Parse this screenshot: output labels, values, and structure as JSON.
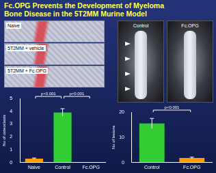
{
  "slide": {
    "title": [
      "Fc.OPG Prevents the Development of Myeloma",
      "Bone Disease in the 5T2MM Murine Model"
    ],
    "histology_labels": [
      "Naive",
      "5T2MM + vehicle",
      "5T2MM + Fc.OPG"
    ],
    "xray_labels": [
      "Control",
      "Fc.OPG"
    ]
  },
  "chart_data": [
    {
      "type": "bar",
      "y_label": "No of osteoclasts",
      "categories": [
        "Naive",
        "Control",
        "Fc.OPG"
      ],
      "values": [
        0.3,
        3.9,
        0
      ],
      "errors": [
        0.05,
        0.3,
        0
      ],
      "colors": [
        "#ff9900",
        "#33cc33",
        "#ff9900"
      ],
      "ylim": [
        0,
        5
      ],
      "yticks": [
        0,
        1,
        2,
        3,
        4,
        5
      ],
      "grid": false,
      "annotations": [
        {
          "text": "p<0.001",
          "from": "Naive",
          "to": "Control"
        },
        {
          "text": "p<0.001",
          "from": "Control",
          "to": "Fc.OPG"
        }
      ]
    },
    {
      "type": "bar",
      "y_label": "No of lesions",
      "categories": [
        "Control",
        "Fc.OPG"
      ],
      "values": [
        15.5,
        1.8
      ],
      "errors": [
        2,
        0.3
      ],
      "colors": [
        "#33cc33",
        "#ff9900"
      ],
      "ylim": [
        0,
        20
      ],
      "yticks": [
        0,
        10,
        20
      ],
      "grid": false,
      "annotations": [
        {
          "text": "p<0.001",
          "from": "Control",
          "to": "Fc.OPG"
        }
      ]
    }
  ]
}
